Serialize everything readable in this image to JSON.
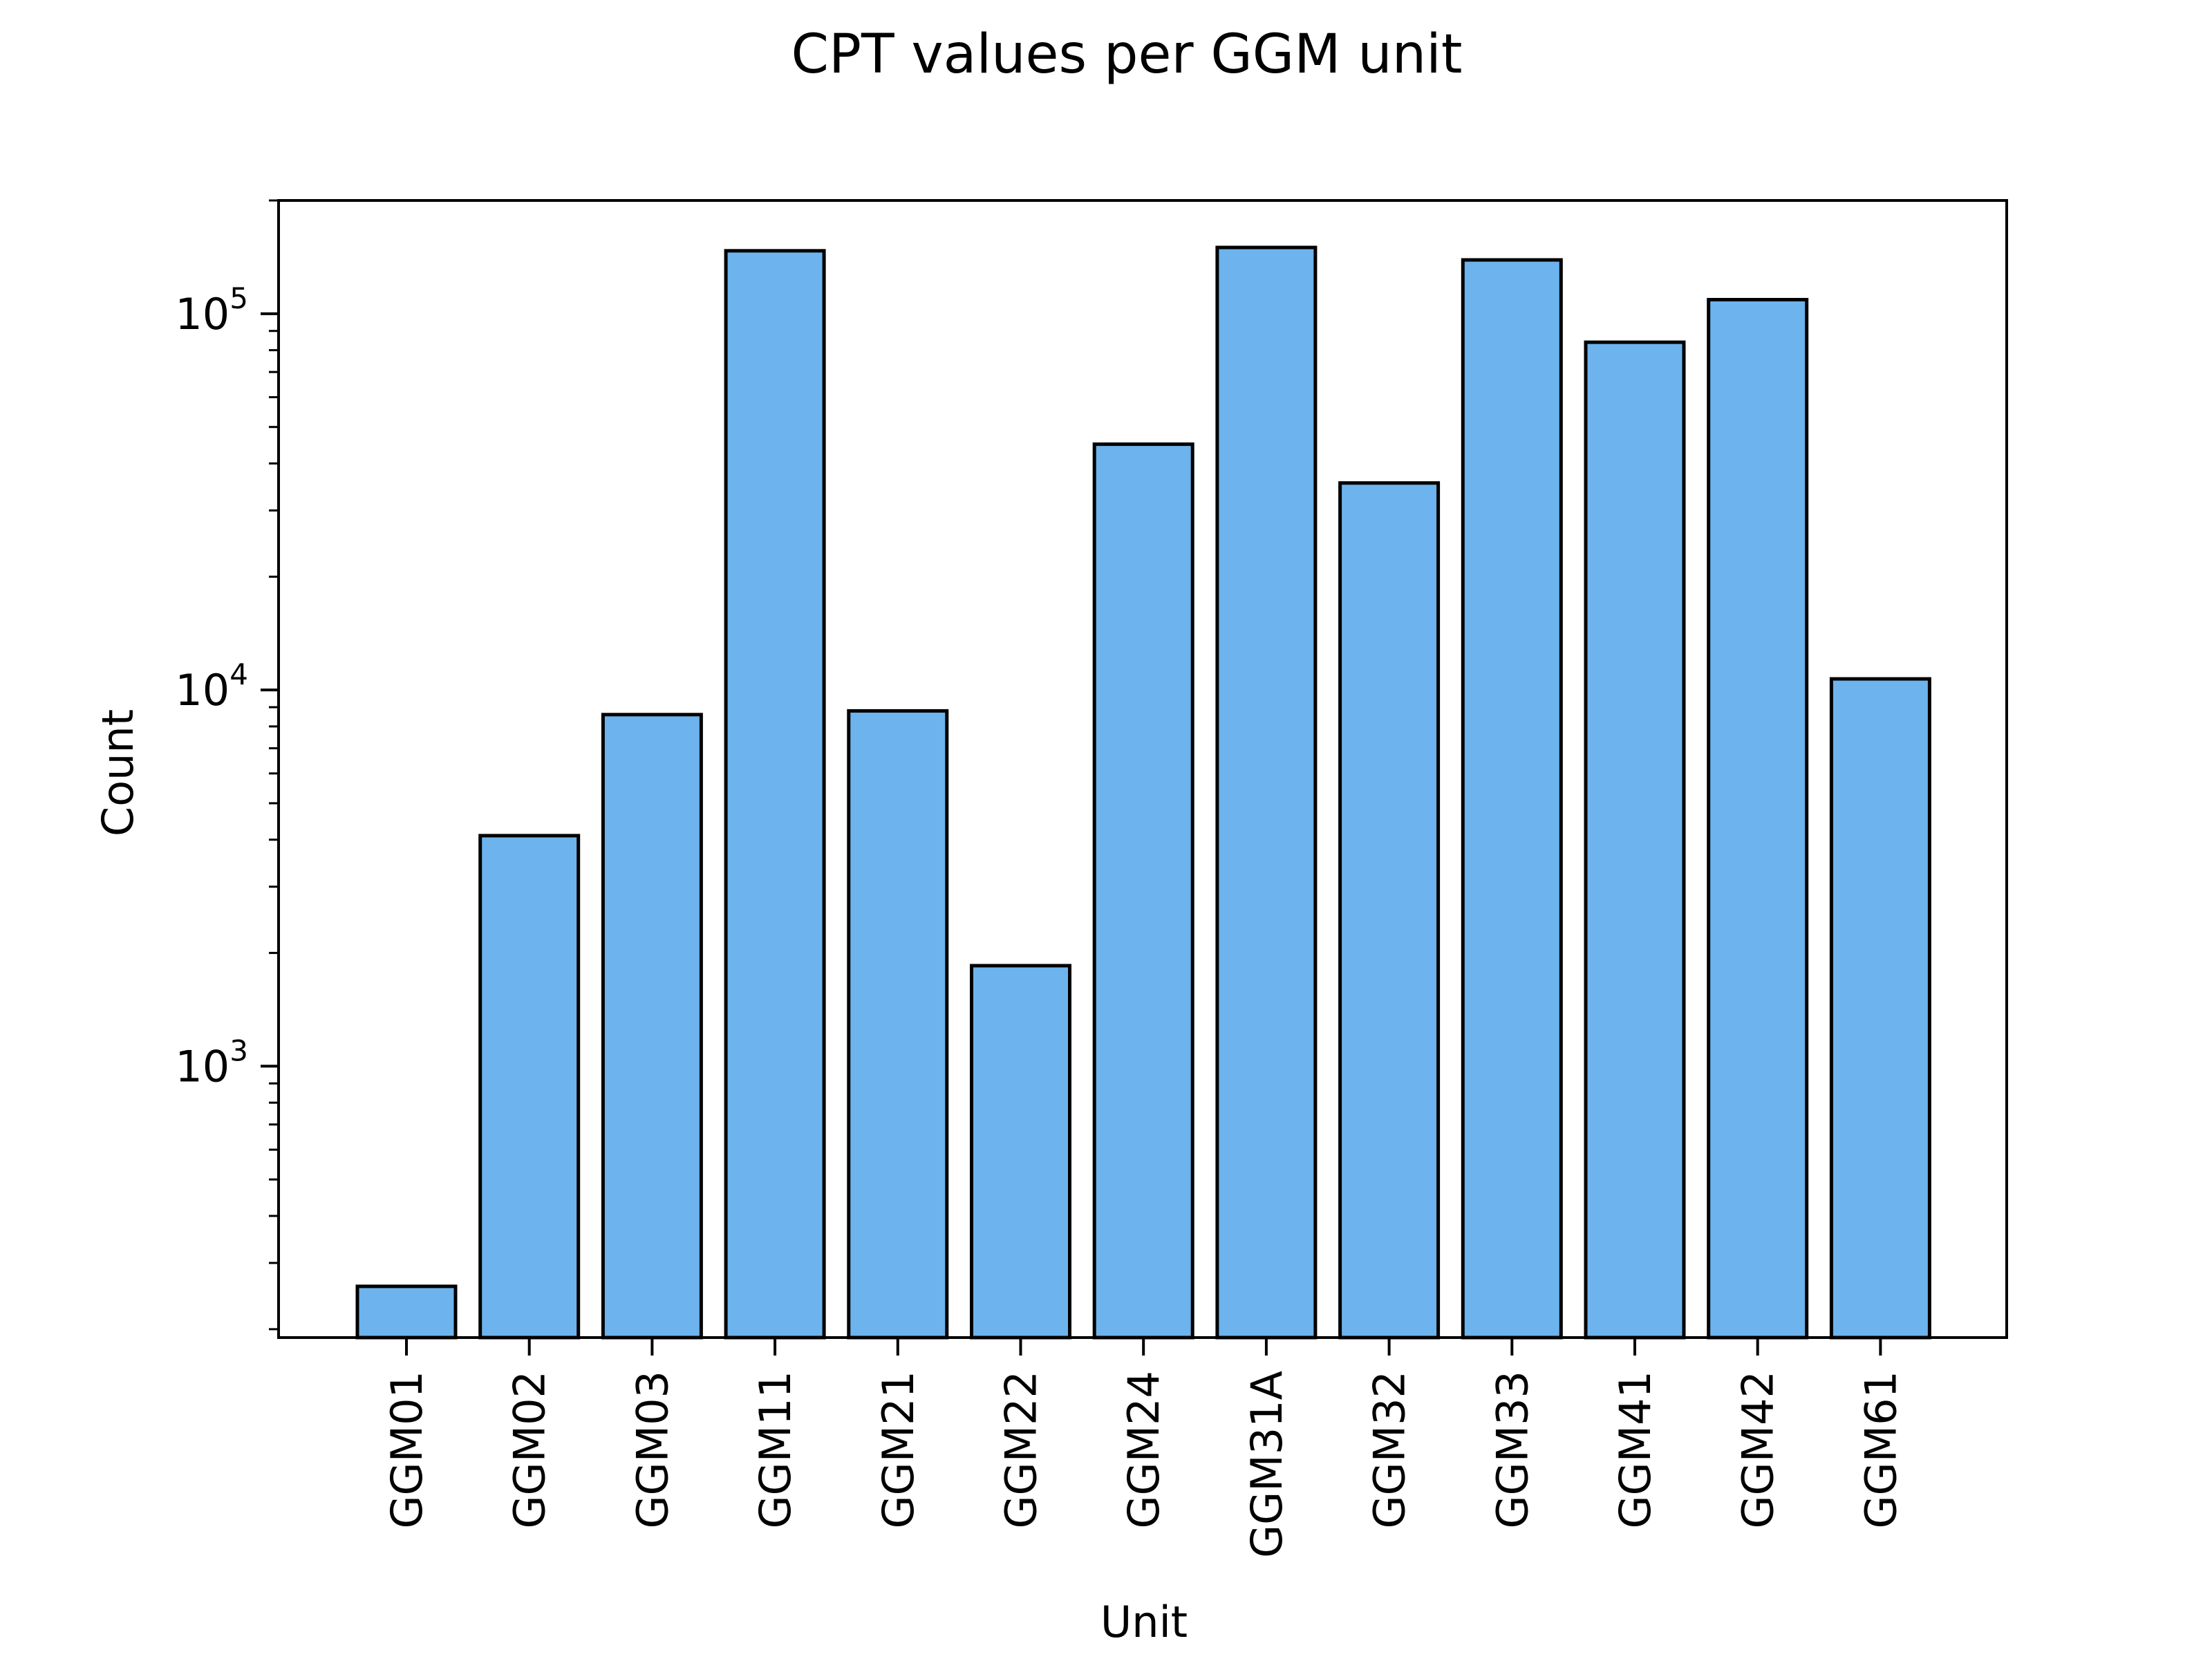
{
  "chart_data": {
    "type": "bar",
    "title": "CPT values per GGM unit",
    "xlabel": "Unit",
    "ylabel": "Count",
    "yscale": "log",
    "ylim": [
      190,
      200000
    ],
    "grid": false,
    "legend": "none",
    "bar_color": "#6db3ed",
    "edge_color": "#000000",
    "categories": [
      "GGM01",
      "GGM02",
      "GGM03",
      "GGM11",
      "GGM21",
      "GGM22",
      "GGM24",
      "GGM31A",
      "GGM32",
      "GGM33",
      "GGM41",
      "GGM42",
      "GGM61"
    ],
    "values": [
      260,
      4100,
      8600,
      147000,
      8800,
      1850,
      45000,
      150000,
      35500,
      139000,
      84000,
      109000,
      10700
    ],
    "y_major_ticks": [
      {
        "value": 1000,
        "base": "10",
        "exp": "3"
      },
      {
        "value": 10000,
        "base": "10",
        "exp": "4"
      },
      {
        "value": 100000,
        "base": "10",
        "exp": "5"
      }
    ]
  }
}
